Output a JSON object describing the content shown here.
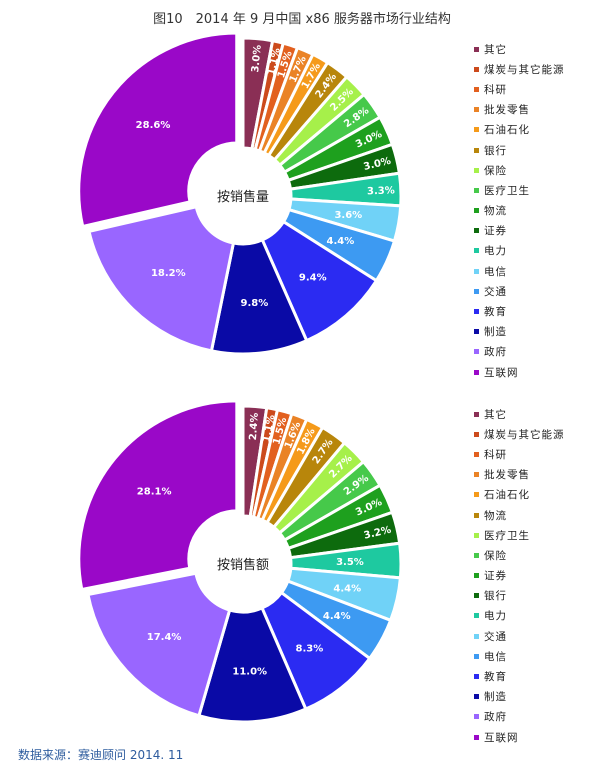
{
  "figure_title": "图10　2014 年 9 月中国 x86 服务器市场行业结构",
  "source_note": "数据来源：赛迪顾问 2014. 11",
  "chart_data": [
    {
      "type": "pie",
      "center_label": "按销售量",
      "categories": [
        "其它",
        "煤炭与其它能源",
        "科研",
        "批发零售",
        "石油石化",
        "银行",
        "保险",
        "医疗卫生",
        "物流",
        "证券",
        "电力",
        "电信",
        "交通",
        "教育",
        "制造",
        "政府",
        "互联网"
      ],
      "values": [
        3.0,
        1.1,
        1.5,
        1.7,
        1.7,
        2.4,
        2.5,
        2.8,
        3.0,
        3.0,
        3.3,
        3.6,
        4.4,
        9.4,
        9.8,
        18.2,
        28.6
      ],
      "labels": [
        "3.0%",
        "1.1%",
        "1.5%",
        "1.7%",
        "1.7%",
        "2.4%",
        "2.5%",
        "2.8%",
        "3.0%",
        "3.0%",
        "3.3%",
        "3.6%",
        "4.4%",
        "9.4%",
        "9.8%",
        "18.2%",
        "28.6%"
      ],
      "colors": [
        "#8a2f55",
        "#cc4a1c",
        "#e2601f",
        "#ea8326",
        "#f59a1a",
        "#b8860b",
        "#a6f04a",
        "#46c94a",
        "#1ea01e",
        "#0d6b0d",
        "#1ec9a0",
        "#70d2f7",
        "#3d9af2",
        "#2b2bf2",
        "#0a0aa6",
        "#9966ff",
        "#9a08c8"
      ]
    },
    {
      "type": "pie",
      "center_label": "按销售额",
      "categories": [
        "其它",
        "煤炭与其它能源",
        "科研",
        "批发零售",
        "石油石化",
        "物流",
        "医疗卫生",
        "保险",
        "证券",
        "银行",
        "电力",
        "交通",
        "电信",
        "教育",
        "制造",
        "政府",
        "互联网"
      ],
      "values": [
        2.4,
        1.1,
        1.5,
        1.6,
        1.8,
        2.7,
        2.7,
        2.9,
        3.0,
        3.2,
        3.5,
        4.4,
        4.4,
        8.3,
        11.0,
        17.4,
        28.1
      ],
      "labels": [
        "2.4%",
        "1.1%",
        "1.5%",
        "1.6%",
        "1.8%",
        "2.7%",
        "2.7%",
        "2.9%",
        "3.0%",
        "3.2%",
        "3.5%",
        "4.4%",
        "4.4%",
        "8.3%",
        "11.0%",
        "17.4%",
        "28.1%"
      ],
      "colors": [
        "#8a2f55",
        "#cc4a1c",
        "#e2601f",
        "#ea8326",
        "#f59a1a",
        "#b8860b",
        "#a6f04a",
        "#46c94a",
        "#1ea01e",
        "#0d6b0d",
        "#1ec9a0",
        "#70d2f7",
        "#3d9af2",
        "#2b2bf2",
        "#0a0aa6",
        "#9966ff",
        "#9a08c8"
      ]
    }
  ]
}
